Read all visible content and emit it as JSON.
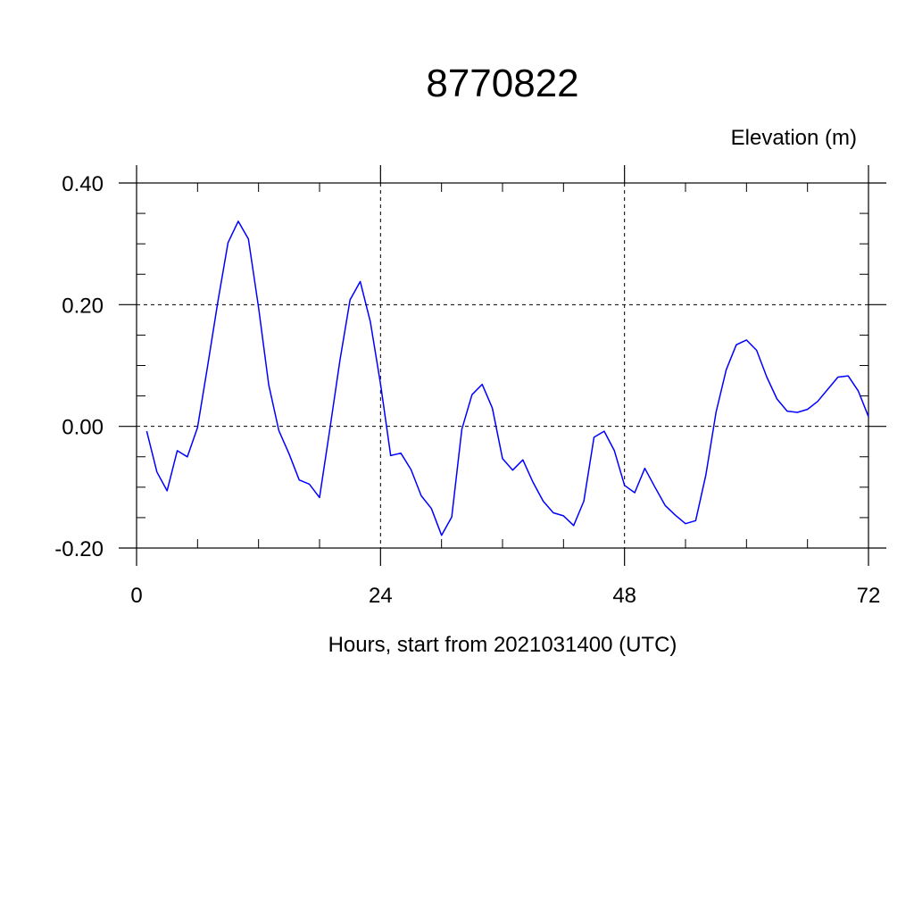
{
  "chart_data": {
    "type": "line",
    "title": "8770822",
    "ylabel": "Elevation (m)",
    "xlabel": "Hours, start from 2021031400 (UTC)",
    "xlim": [
      0,
      72
    ],
    "ylim": [
      -0.2,
      0.4
    ],
    "x_ticks": [
      0,
      24,
      48,
      72
    ],
    "x_tick_labels": [
      "0",
      "24",
      "48",
      "72"
    ],
    "y_ticks": [
      -0.2,
      0.0,
      0.2,
      0.4
    ],
    "y_tick_labels": [
      "-0.20",
      "0.00",
      "0.20",
      "0.40"
    ],
    "grid": true,
    "series": [
      {
        "color": "#0000ff",
        "x": [
          1,
          2,
          3,
          4,
          5,
          6,
          7,
          8,
          9,
          10,
          11,
          12,
          13,
          14,
          15,
          16,
          17,
          18,
          19,
          20,
          21,
          22,
          23,
          24,
          25,
          26,
          27,
          28,
          29,
          30,
          31,
          32,
          33,
          34,
          35,
          36,
          37,
          38,
          39,
          40,
          41,
          42,
          43,
          44,
          45,
          46,
          47,
          48,
          49,
          50,
          51,
          52,
          53,
          54,
          55,
          56,
          57,
          58,
          59,
          60,
          61,
          62,
          63,
          64,
          65,
          66,
          67,
          68,
          69,
          70,
          71,
          72
        ],
        "values": [
          -0.008,
          -0.075,
          -0.106,
          -0.04,
          -0.05,
          -0.002,
          0.1,
          0.205,
          0.302,
          0.337,
          0.308,
          0.195,
          0.068,
          -0.007,
          -0.045,
          -0.088,
          -0.095,
          -0.117,
          -0.006,
          0.108,
          0.208,
          0.238,
          0.172,
          0.07,
          -0.048,
          -0.044,
          -0.071,
          -0.114,
          -0.135,
          -0.179,
          -0.149,
          -0.005,
          0.052,
          0.069,
          0.03,
          -0.053,
          -0.072,
          -0.055,
          -0.092,
          -0.123,
          -0.142,
          -0.147,
          -0.163,
          -0.123,
          -0.018,
          -0.008,
          -0.04,
          -0.097,
          -0.109,
          -0.069,
          -0.1,
          -0.13,
          -0.146,
          -0.16,
          -0.155,
          -0.08,
          0.023,
          0.093,
          0.134,
          0.142,
          0.125,
          0.081,
          0.045,
          0.025,
          0.023,
          0.028,
          0.041,
          0.061,
          0.081,
          0.083,
          0.058,
          0.016
        ]
      }
    ]
  }
}
